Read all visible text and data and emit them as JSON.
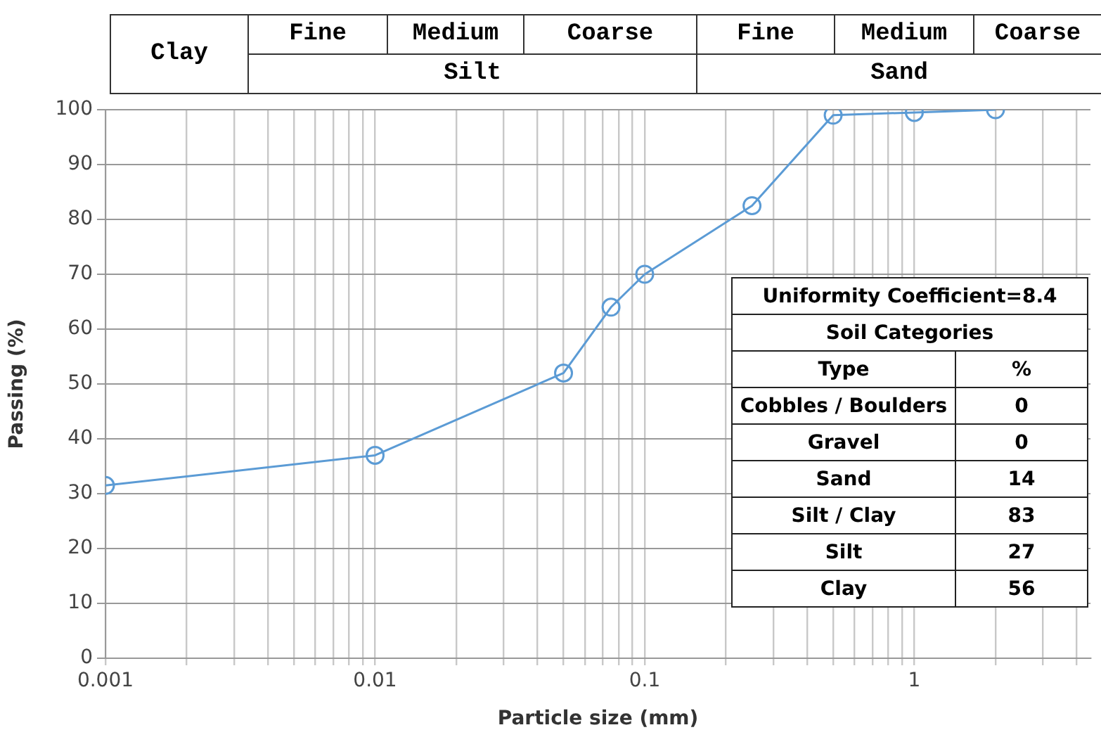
{
  "chart_data": {
    "type": "line",
    "xlabel": "Particle size (mm)",
    "ylabel": "Passing (%)",
    "x": [
      0.001,
      0.01,
      0.05,
      0.075,
      0.1,
      0.25,
      0.5,
      1,
      2
    ],
    "series": [
      {
        "color": "#5b9bd5",
        "values": [
          31.5,
          37,
          52,
          64,
          70,
          82.5,
          99,
          99.5,
          100
        ]
      }
    ],
    "log": "x",
    "xlim": [
      0.001,
      4.5
    ],
    "xticks": [
      0.001,
      {
        "value": 0.002,
        "label": null
      },
      {
        "value": 0.003,
        "label": null
      },
      {
        "value": 0.004,
        "label": null
      },
      {
        "value": 0.005,
        "label": null
      },
      {
        "value": 0.006,
        "label": null
      },
      {
        "value": 0.007,
        "label": null
      },
      {
        "value": 0.008,
        "label": null
      },
      {
        "value": 0.009,
        "label": null
      },
      0.01,
      {
        "value": 0.02,
        "label": null
      },
      {
        "value": 0.03,
        "label": null
      },
      {
        "value": 0.04,
        "label": null
      },
      {
        "value": 0.05,
        "label": null
      },
      {
        "value": 0.06,
        "label": null
      },
      {
        "value": 0.07,
        "label": null
      },
      {
        "value": 0.08,
        "label": null
      },
      {
        "value": 0.09,
        "label": null
      },
      0.1,
      {
        "value": 0.2,
        "label": null
      },
      {
        "value": 0.3,
        "label": null
      },
      {
        "value": 0.4,
        "label": null
      },
      {
        "value": 0.5,
        "label": null
      },
      {
        "value": 0.6,
        "label": null
      },
      {
        "value": 0.7,
        "label": null
      },
      {
        "value": 0.8,
        "label": null
      },
      {
        "value": 0.9,
        "label": null
      },
      1,
      {
        "value": 2,
        "label": null
      },
      {
        "value": 3,
        "label": null
      },
      {
        "value": 4,
        "label": null
      }
    ],
    "ylim": [
      0,
      100
    ],
    "yticks": [
      0,
      10,
      20,
      30,
      40,
      50,
      60,
      70,
      80,
      90,
      100
    ],
    "grid": true,
    "legend": false,
    "marker": "circle",
    "line_style": "solid",
    "annotations": [
      "Clay",
      "Fine",
      "Medium",
      "Coarse",
      "Silt",
      "Fine",
      "Medium",
      "Coarse",
      "Sand",
      "Uniformity Coefficient=8.4",
      "Soil Categories",
      "Type",
      "%",
      "Cobbles / Boulders",
      "0",
      "Gravel",
      "0",
      "Sand",
      "14",
      "Silt / Clay",
      "83",
      "Silt",
      "27",
      "Clay",
      "56"
    ]
  }
}
